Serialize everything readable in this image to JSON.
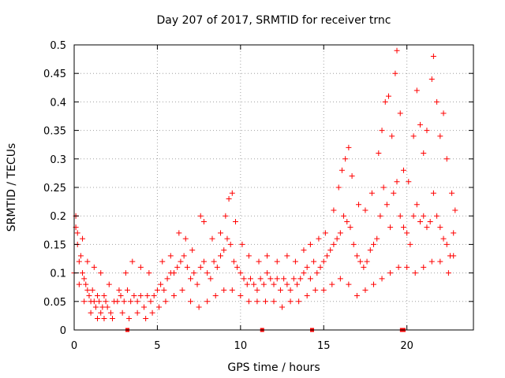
{
  "chart_data": {
    "type": "scatter",
    "title": "Day 207 of 2017, SRMTID for receiver trnc",
    "xlabel": "GPS time / hours",
    "ylabel": "SRMTID / TECUs",
    "xlim": [
      0,
      24
    ],
    "ylim": [
      0,
      0.5
    ],
    "x_ticks": [
      0,
      5,
      10,
      15,
      20
    ],
    "x_tick_labels": [
      "0",
      "5",
      "10",
      "15",
      "20"
    ],
    "y_ticks": [
      0,
      0.05,
      0.1,
      0.15,
      0.2,
      0.25,
      0.3,
      0.35,
      0.4,
      0.45,
      0.5
    ],
    "y_tick_labels": [
      "0",
      "0.05",
      "0.1",
      "0.15",
      "0.2",
      "0.25",
      "0.3",
      "0.35",
      "0.4",
      "0.45",
      "0.5"
    ],
    "grid": true,
    "marker": "+",
    "series": [
      {
        "name": "SRMTID",
        "color": "#ff0000",
        "points": [
          [
            0.0,
            0.1
          ],
          [
            0.1,
            0.18
          ],
          [
            0.2,
            0.15
          ],
          [
            0.3,
            0.12
          ],
          [
            0.4,
            0.13
          ],
          [
            0.5,
            0.1
          ],
          [
            0.6,
            0.09
          ],
          [
            0.7,
            0.08
          ],
          [
            0.8,
            0.07
          ],
          [
            0.9,
            0.06
          ],
          [
            1.0,
            0.05
          ],
          [
            1.1,
            0.07
          ],
          [
            1.2,
            0.05
          ],
          [
            1.3,
            0.04
          ],
          [
            1.4,
            0.06
          ],
          [
            1.5,
            0.05
          ],
          [
            1.6,
            0.03
          ],
          [
            1.7,
            0.04
          ],
          [
            1.8,
            0.06
          ],
          [
            1.9,
            0.05
          ],
          [
            2.0,
            0.04
          ],
          [
            2.2,
            0.03
          ],
          [
            2.4,
            0.05
          ],
          [
            2.6,
            0.05
          ],
          [
            2.8,
            0.06
          ],
          [
            3.0,
            0.05
          ],
          [
            3.2,
            0.07
          ],
          [
            3.4,
            0.05
          ],
          [
            3.6,
            0.06
          ],
          [
            3.8,
            0.05
          ],
          [
            4.0,
            0.06
          ],
          [
            4.2,
            0.04
          ],
          [
            4.4,
            0.06
          ],
          [
            4.6,
            0.05
          ],
          [
            4.8,
            0.06
          ],
          [
            5.0,
            0.07
          ],
          [
            5.2,
            0.08
          ],
          [
            5.4,
            0.07
          ],
          [
            5.6,
            0.09
          ],
          [
            5.8,
            0.1
          ],
          [
            6.0,
            0.1
          ],
          [
            6.2,
            0.11
          ],
          [
            6.4,
            0.12
          ],
          [
            6.6,
            0.13
          ],
          [
            6.8,
            0.11
          ],
          [
            7.0,
            0.09
          ],
          [
            7.2,
            0.1
          ],
          [
            7.4,
            0.08
          ],
          [
            7.6,
            0.11
          ],
          [
            7.8,
            0.12
          ],
          [
            8.0,
            0.1
          ],
          [
            8.2,
            0.09
          ],
          [
            8.4,
            0.12
          ],
          [
            8.6,
            0.11
          ],
          [
            8.8,
            0.13
          ],
          [
            9.0,
            0.14
          ],
          [
            9.2,
            0.16
          ],
          [
            9.4,
            0.15
          ],
          [
            9.6,
            0.12
          ],
          [
            9.8,
            0.11
          ],
          [
            10.0,
            0.1
          ],
          [
            10.2,
            0.09
          ],
          [
            10.4,
            0.08
          ],
          [
            10.6,
            0.09
          ],
          [
            10.8,
            0.08
          ],
          [
            11.0,
            0.07
          ],
          [
            11.2,
            0.09
          ],
          [
            11.4,
            0.08
          ],
          [
            11.6,
            0.1
          ],
          [
            11.8,
            0.09
          ],
          [
            12.0,
            0.08
          ],
          [
            12.2,
            0.09
          ],
          [
            12.4,
            0.07
          ],
          [
            12.6,
            0.09
          ],
          [
            12.8,
            0.08
          ],
          [
            13.0,
            0.07
          ],
          [
            13.2,
            0.09
          ],
          [
            13.4,
            0.08
          ],
          [
            13.6,
            0.09
          ],
          [
            13.8,
            0.1
          ],
          [
            14.0,
            0.11
          ],
          [
            14.2,
            0.09
          ],
          [
            14.4,
            0.12
          ],
          [
            14.6,
            0.1
          ],
          [
            14.8,
            0.11
          ],
          [
            15.0,
            0.12
          ],
          [
            15.2,
            0.13
          ],
          [
            15.4,
            0.14
          ],
          [
            15.6,
            0.15
          ],
          [
            15.8,
            0.16
          ],
          [
            16.0,
            0.17
          ],
          [
            16.2,
            0.2
          ],
          [
            16.4,
            0.19
          ],
          [
            16.6,
            0.18
          ],
          [
            16.8,
            0.15
          ],
          [
            17.0,
            0.13
          ],
          [
            17.2,
            0.12
          ],
          [
            17.4,
            0.11
          ],
          [
            17.6,
            0.12
          ],
          [
            17.8,
            0.14
          ],
          [
            18.0,
            0.15
          ],
          [
            18.2,
            0.16
          ],
          [
            18.4,
            0.2
          ],
          [
            18.6,
            0.25
          ],
          [
            18.8,
            0.22
          ],
          [
            19.0,
            0.18
          ],
          [
            19.2,
            0.24
          ],
          [
            19.4,
            0.26
          ],
          [
            19.6,
            0.2
          ],
          [
            19.8,
            0.18
          ],
          [
            20.0,
            0.17
          ],
          [
            20.2,
            0.15
          ],
          [
            20.4,
            0.2
          ],
          [
            20.6,
            0.22
          ],
          [
            20.8,
            0.19
          ],
          [
            21.0,
            0.2
          ],
          [
            21.2,
            0.18
          ],
          [
            21.4,
            0.19
          ],
          [
            21.6,
            0.24
          ],
          [
            21.8,
            0.2
          ],
          [
            22.0,
            0.18
          ],
          [
            22.2,
            0.16
          ],
          [
            22.4,
            0.15
          ],
          [
            22.6,
            0.13
          ],
          [
            22.8,
            0.17
          ],
          [
            0.1,
            0.2
          ],
          [
            0.2,
            0.17
          ],
          [
            0.5,
            0.16
          ],
          [
            0.8,
            0.12
          ],
          [
            1.2,
            0.11
          ],
          [
            1.6,
            0.1
          ],
          [
            2.1,
            0.08
          ],
          [
            2.7,
            0.07
          ],
          [
            3.1,
            0.1
          ],
          [
            3.5,
            0.12
          ],
          [
            4.0,
            0.11
          ],
          [
            4.5,
            0.1
          ],
          [
            5.3,
            0.12
          ],
          [
            5.8,
            0.13
          ],
          [
            6.3,
            0.17
          ],
          [
            6.7,
            0.16
          ],
          [
            7.1,
            0.14
          ],
          [
            7.6,
            0.2
          ],
          [
            7.8,
            0.19
          ],
          [
            8.3,
            0.16
          ],
          [
            8.8,
            0.17
          ],
          [
            9.1,
            0.2
          ],
          [
            9.3,
            0.23
          ],
          [
            9.5,
            0.24
          ],
          [
            9.7,
            0.19
          ],
          [
            10.1,
            0.15
          ],
          [
            10.5,
            0.13
          ],
          [
            11.1,
            0.12
          ],
          [
            11.6,
            0.13
          ],
          [
            12.2,
            0.12
          ],
          [
            12.8,
            0.13
          ],
          [
            13.3,
            0.12
          ],
          [
            13.8,
            0.14
          ],
          [
            14.2,
            0.15
          ],
          [
            14.7,
            0.16
          ],
          [
            15.1,
            0.17
          ],
          [
            15.6,
            0.21
          ],
          [
            15.9,
            0.25
          ],
          [
            16.1,
            0.28
          ],
          [
            16.3,
            0.3
          ],
          [
            16.5,
            0.32
          ],
          [
            16.7,
            0.27
          ],
          [
            17.1,
            0.22
          ],
          [
            17.5,
            0.21
          ],
          [
            17.9,
            0.24
          ],
          [
            18.3,
            0.31
          ],
          [
            18.5,
            0.35
          ],
          [
            18.7,
            0.4
          ],
          [
            18.9,
            0.41
          ],
          [
            19.1,
            0.34
          ],
          [
            19.3,
            0.45
          ],
          [
            19.4,
            0.49
          ],
          [
            19.6,
            0.38
          ],
          [
            19.8,
            0.28
          ],
          [
            20.1,
            0.26
          ],
          [
            20.4,
            0.34
          ],
          [
            20.6,
            0.42
          ],
          [
            20.8,
            0.36
          ],
          [
            21.0,
            0.31
          ],
          [
            21.2,
            0.35
          ],
          [
            21.5,
            0.44
          ],
          [
            21.6,
            0.48
          ],
          [
            21.8,
            0.4
          ],
          [
            22.0,
            0.34
          ],
          [
            22.2,
            0.38
          ],
          [
            22.4,
            0.3
          ],
          [
            22.7,
            0.24
          ],
          [
            22.9,
            0.21
          ],
          [
            0.3,
            0.08
          ],
          [
            0.6,
            0.05
          ],
          [
            1.0,
            0.03
          ],
          [
            1.4,
            0.02
          ],
          [
            1.8,
            0.02
          ],
          [
            2.3,
            0.02
          ],
          [
            2.9,
            0.03
          ],
          [
            3.3,
            0.02
          ],
          [
            3.8,
            0.03
          ],
          [
            4.3,
            0.02
          ],
          [
            4.7,
            0.03
          ],
          [
            5.1,
            0.04
          ],
          [
            5.5,
            0.05
          ],
          [
            6.0,
            0.06
          ],
          [
            6.5,
            0.07
          ],
          [
            7.0,
            0.05
          ],
          [
            7.5,
            0.04
          ],
          [
            8.0,
            0.05
          ],
          [
            8.5,
            0.06
          ],
          [
            9.0,
            0.07
          ],
          [
            9.5,
            0.07
          ],
          [
            10.0,
            0.06
          ],
          [
            10.5,
            0.05
          ],
          [
            11.0,
            0.05
          ],
          [
            11.5,
            0.05
          ],
          [
            12.0,
            0.05
          ],
          [
            12.5,
            0.04
          ],
          [
            13.0,
            0.05
          ],
          [
            13.5,
            0.05
          ],
          [
            14.0,
            0.06
          ],
          [
            14.5,
            0.07
          ],
          [
            15.0,
            0.07
          ],
          [
            15.5,
            0.08
          ],
          [
            16.0,
            0.09
          ],
          [
            16.5,
            0.08
          ],
          [
            17.0,
            0.06
          ],
          [
            17.5,
            0.07
          ],
          [
            18.0,
            0.08
          ],
          [
            18.5,
            0.09
          ],
          [
            19.0,
            0.1
          ],
          [
            19.5,
            0.11
          ],
          [
            20.0,
            0.11
          ],
          [
            20.5,
            0.1
          ],
          [
            21.0,
            0.11
          ],
          [
            21.5,
            0.12
          ],
          [
            22.0,
            0.12
          ],
          [
            22.5,
            0.1
          ],
          [
            22.8,
            0.13
          ]
        ]
      }
    ],
    "axis_markers_x": [
      3.2,
      11.3,
      14.3,
      19.7,
      19.8
    ]
  }
}
